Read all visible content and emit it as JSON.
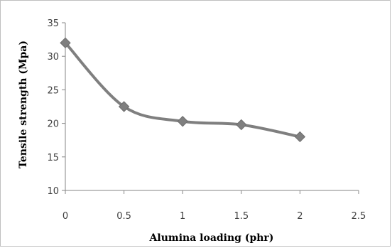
{
  "chart_data": {
    "type": "line",
    "title": "",
    "xlabel": "Alumina loading (phr)",
    "ylabel": "Tensile strength (Mpa)",
    "x": [
      0,
      0.5,
      1,
      1.5,
      2
    ],
    "series": [
      {
        "values": [
          32,
          22.5,
          20.3,
          19.8,
          18
        ]
      }
    ],
    "xlim": [
      0,
      2.5
    ],
    "ylim": [
      10,
      35
    ],
    "x_ticks": [
      "0",
      "0.5",
      "1",
      "1.5",
      "2",
      "2.5"
    ],
    "y_ticks": [
      "10",
      "15",
      "20",
      "25",
      "30",
      "35"
    ],
    "grid": false,
    "legend": "none",
    "line_color": "#7f7f7f",
    "marker": "diamond",
    "smoothed": true
  }
}
